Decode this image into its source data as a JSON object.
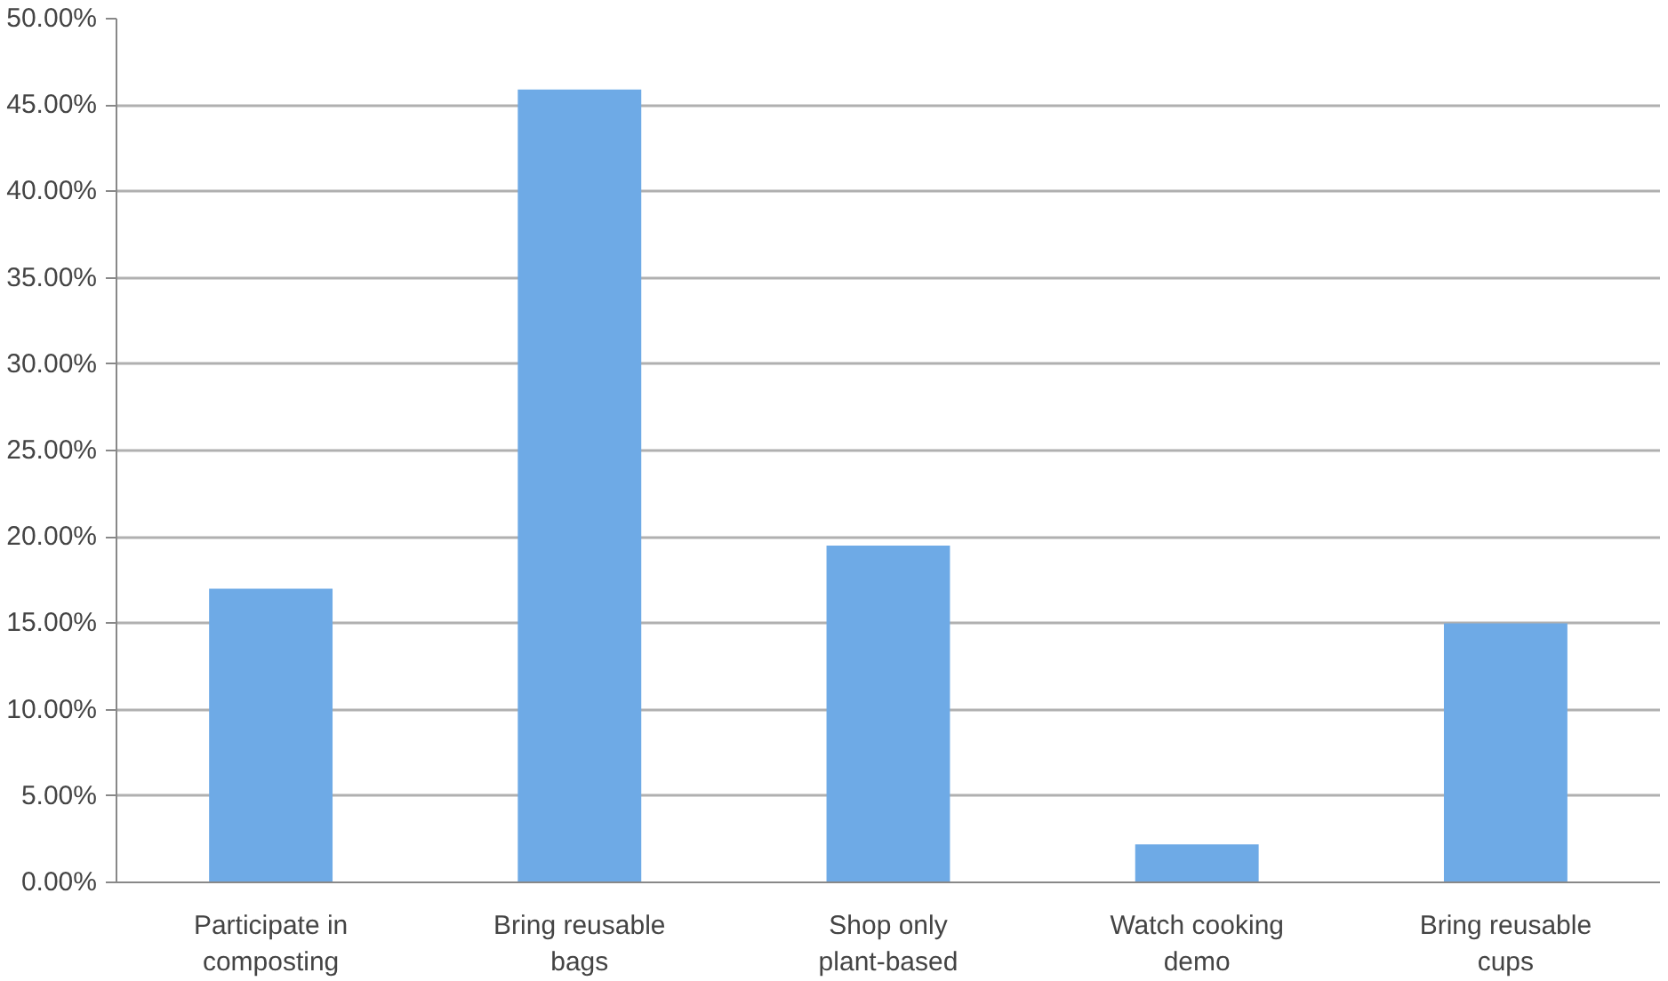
{
  "chart_data": {
    "type": "bar",
    "categories": [
      "Participate in composting",
      "Bring reusable bags",
      "Shop only plant-based",
      "Watch cooking demo",
      "Bring reusable cups"
    ],
    "values": [
      17.0,
      45.9,
      19.5,
      2.2,
      15.0
    ],
    "color": "#6eaae6",
    "ylim": [
      0,
      50
    ],
    "yticks": [
      {
        "value": 0,
        "label": "0.00%"
      },
      {
        "value": 5,
        "label": "5.00%"
      },
      {
        "value": 10,
        "label": "10.00%"
      },
      {
        "value": 15,
        "label": "15.00%"
      },
      {
        "value": 20,
        "label": "20.00%"
      },
      {
        "value": 25,
        "label": "25.00%"
      },
      {
        "value": 30,
        "label": "30.00%"
      },
      {
        "value": 35,
        "label": "35.00%"
      },
      {
        "value": 40,
        "label": "40.00%"
      },
      {
        "value": 45,
        "label": "45.00%"
      },
      {
        "value": 50,
        "label": "50.00%"
      }
    ],
    "grid": "y"
  }
}
